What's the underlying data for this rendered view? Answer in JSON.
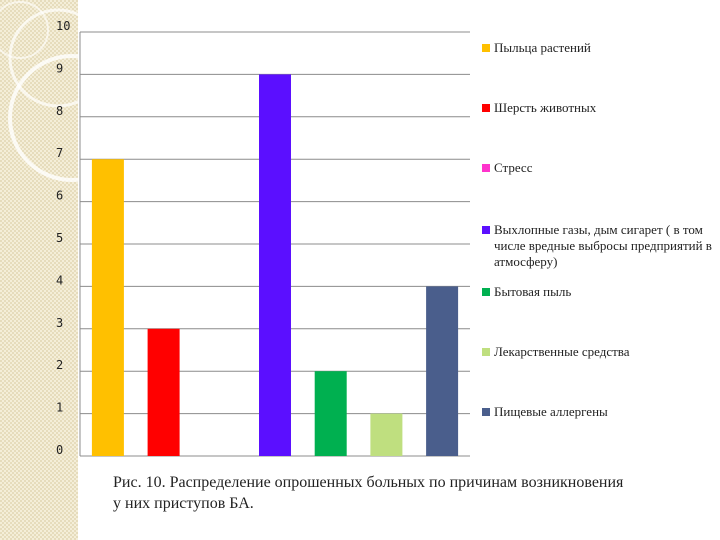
{
  "chart_data": {
    "type": "bar",
    "categories": [
      "Пыльца растений",
      "Шерсть животных",
      "Стресс",
      "Выхлопные газы, дым сигарет ( в том числе вредные выбросы предприятий в атмосферу)",
      "Бытовая пыль",
      "Лекарственные средства",
      "Пищевые аллергены"
    ],
    "values": [
      7,
      3,
      0,
      9,
      2,
      1,
      4
    ],
    "colors": [
      "#FFC000",
      "#FF0000",
      "#FF33CC",
      "#5B0FFF",
      "#00B050",
      "#BFDF7F",
      "#4A5E8C"
    ],
    "ylim": [
      0,
      10
    ],
    "yticks": [
      "0",
      "1",
      "2",
      "3",
      "4",
      "5",
      "6",
      "7",
      "8",
      "9",
      "10"
    ],
    "grid": true,
    "legend_position": "right",
    "title": "",
    "xlabel": "",
    "ylabel": ""
  },
  "caption": "Рис. 10. Распределение опрошенных больных по причинам возникновения у них приступов БА."
}
